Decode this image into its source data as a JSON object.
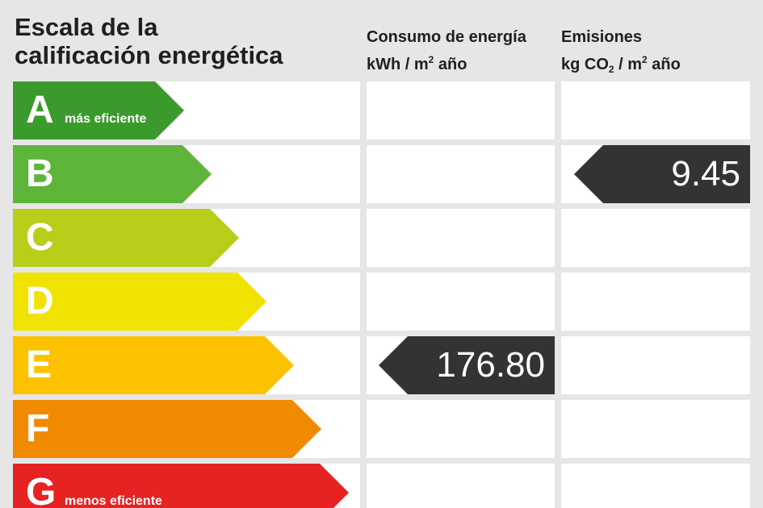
{
  "header": {
    "title_line1": "Escala de la",
    "title_line2": "calificación energética",
    "energy_line1": "Consumo de energía",
    "energy_unit_a": "kWh / m",
    "energy_unit_sup": "2",
    "energy_unit_b": " año",
    "emissions_line1": "Emisiones",
    "emissions_unit_a": "kg CO",
    "emissions_unit_sub": "2",
    "emissions_unit_b": " / m",
    "emissions_unit_sup": "2",
    "emissions_unit_c": " año"
  },
  "ratings": [
    {
      "letter": "A",
      "note": "más eficiente",
      "color": "#3a9a2b"
    },
    {
      "letter": "B",
      "note": "",
      "color": "#5fb43a"
    },
    {
      "letter": "C",
      "note": "",
      "color": "#b8ce1a"
    },
    {
      "letter": "D",
      "note": "",
      "color": "#f1e301"
    },
    {
      "letter": "E",
      "note": "",
      "color": "#fcc200"
    },
    {
      "letter": "F",
      "note": "",
      "color": "#f08a00"
    },
    {
      "letter": "G",
      "note": "menos eficiente",
      "color": "#e62222"
    }
  ],
  "energy": {
    "rating": "E",
    "value": "176.80"
  },
  "emissions": {
    "rating": "B",
    "value": "9.45"
  },
  "colors": {
    "marker": "#333333",
    "background": "#e6e6e6",
    "cell": "#ffffff"
  }
}
